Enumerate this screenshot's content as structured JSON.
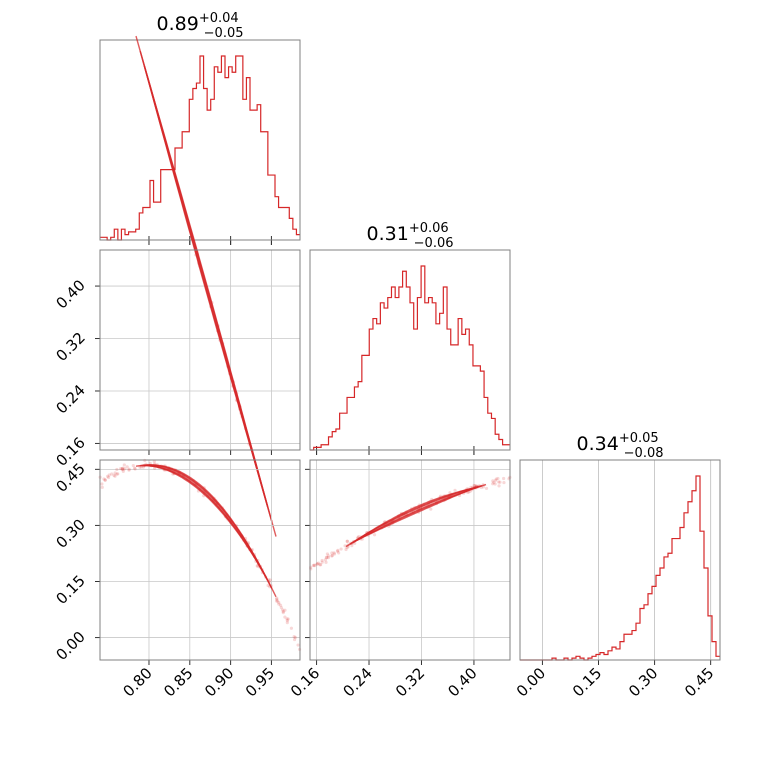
{
  "chart_data": {
    "type": "corner",
    "color": "#d62728",
    "parameters": [
      {
        "median": "0.89",
        "plus": "+0.04",
        "minus": "−0.05",
        "range": [
          0.74,
          0.985
        ],
        "ticks": [
          0.8,
          0.85,
          0.9,
          0.95
        ],
        "tick_labels": [
          "0.80",
          "0.85",
          "0.90",
          "0.95"
        ],
        "hist_values": [
          1,
          1,
          0,
          1,
          4,
          0,
          4,
          2,
          3,
          3,
          4,
          10,
          12,
          12,
          22,
          14,
          14,
          26,
          26,
          26,
          26,
          34,
          34,
          40,
          40,
          52,
          56,
          58,
          68,
          56,
          48,
          52,
          64,
          62,
          68,
          60,
          64,
          62,
          68,
          68,
          52,
          60,
          48,
          48,
          50,
          40,
          40,
          24,
          24,
          16,
          12,
          12,
          12,
          8,
          4,
          2
        ]
      },
      {
        "median": "0.31",
        "plus": "+0.06",
        "minus": "−0.06",
        "range": [
          0.15,
          0.455
        ],
        "ticks": [
          0.16,
          0.24,
          0.32,
          0.4
        ],
        "tick_labels": [
          "0.16",
          "0.24",
          "0.32",
          "0.40"
        ],
        "hist_values": [
          0,
          1,
          1,
          2,
          2,
          5,
          7,
          8,
          14,
          14,
          20,
          20,
          24,
          26,
          36,
          36,
          46,
          50,
          48,
          56,
          54,
          58,
          62,
          58,
          62,
          68,
          62,
          56,
          46,
          58,
          70,
          56,
          58,
          56,
          48,
          52,
          62,
          46,
          40,
          40,
          50,
          44,
          46,
          40,
          32,
          32,
          30,
          20,
          14,
          12,
          6,
          4,
          2,
          2
        ]
      },
      {
        "median": "0.34",
        "plus": "+0.05",
        "minus": "−0.08",
        "range": [
          -0.06,
          0.475
        ],
        "ticks": [
          0.0,
          0.15,
          0.3,
          0.45
        ],
        "tick_labels": [
          "0.00",
          "0.15",
          "0.30",
          "0.45"
        ],
        "hist_values": [
          0,
          0,
          0,
          0,
          0,
          0,
          0,
          0,
          1,
          0,
          0,
          1,
          0,
          1,
          2,
          1,
          0,
          1,
          2,
          3,
          4,
          3,
          5,
          7,
          6,
          10,
          14,
          14,
          16,
          20,
          28,
          30,
          36,
          40,
          46,
          50,
          56,
          58,
          66,
          66,
          72,
          80,
          86,
          92,
          100,
          70,
          50,
          24,
          10,
          2
        ]
      }
    ],
    "scatter_pairs": [
      {
        "row": 1,
        "col": 0,
        "y_tick_labels": [
          "0.16",
          "0.24",
          "0.32",
          "0.40"
        ]
      },
      {
        "row": 2,
        "col": 0,
        "y_tick_labels": [
          "0.00",
          "0.15",
          "0.30",
          "0.45"
        ]
      },
      {
        "row": 2,
        "col": 1,
        "y_tick_labels": []
      }
    ]
  }
}
